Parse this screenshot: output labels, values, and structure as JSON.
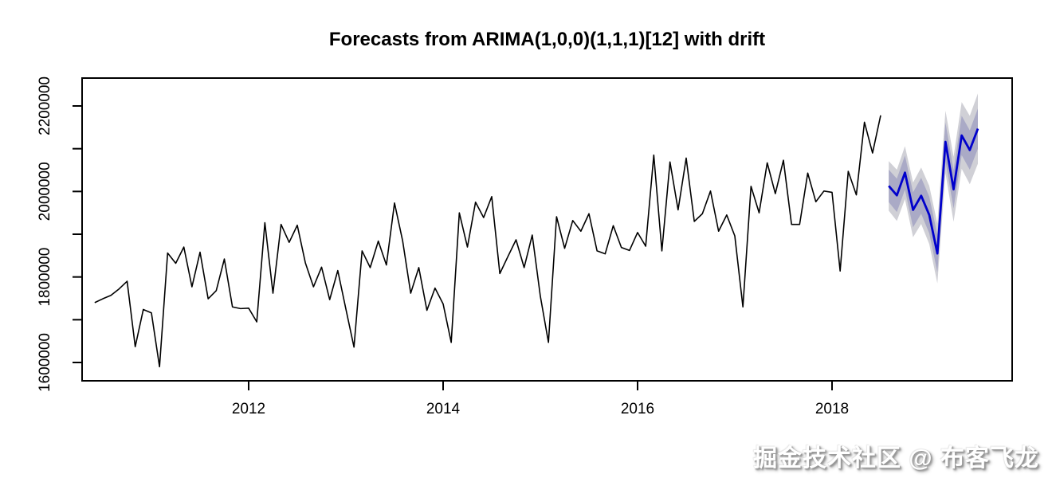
{
  "title": "Forecasts from ARIMA(1,0,0)(1,1,1)[12] with drift",
  "watermark": "掘金技术社区 @ 布客飞龙",
  "chart_data": {
    "type": "line",
    "title": "Forecasts from ARIMA(1,0,0)(1,1,1)[12] with drift",
    "xlabel": "",
    "ylabel": "",
    "grid": false,
    "legend": "none",
    "x_ticks": [
      2012,
      2014,
      2016,
      2018
    ],
    "y_tick_labels": [
      1600000,
      1800000,
      2000000,
      2200000
    ],
    "y_minor_step": 100000,
    "xlim": [
      2010.29,
      2019.85
    ],
    "ylim": [
      1557000,
      2265000
    ],
    "series": [
      {
        "name": "observed",
        "type": "line",
        "color": "#000000",
        "start_year": 2010,
        "start_month": 6,
        "frequency": 12,
        "values": [
          1740000,
          1749000,
          1757000,
          1772000,
          1790000,
          1637000,
          1724000,
          1716000,
          1590000,
          1856000,
          1832000,
          1870000,
          1777000,
          1858000,
          1749000,
          1768000,
          1842000,
          1730000,
          1726000,
          1727000,
          1695000,
          1927000,
          1762000,
          1923000,
          1881000,
          1921000,
          1833000,
          1777000,
          1823000,
          1747000,
          1815000,
          1725000,
          1636000,
          1861000,
          1822000,
          1884000,
          1828000,
          1973000,
          1885000,
          1762000,
          1822000,
          1722000,
          1774000,
          1737000,
          1647000,
          1950000,
          1870000,
          1975000,
          1939000,
          1988000,
          1808000,
          1848000,
          1887000,
          1822000,
          1898000,
          1755000,
          1647000,
          1941000,
          1867000,
          1932000,
          1907000,
          1948000,
          1861000,
          1854000,
          1920000,
          1869000,
          1862000,
          1904000,
          1872000,
          2085000,
          1861000,
          2069000,
          1957000,
          2078000,
          1930000,
          1948000,
          2001000,
          1907000,
          1945000,
          1896000,
          1730000,
          2012000,
          1950000,
          2067000,
          1995000,
          2073000,
          1923000,
          1923000,
          2043000,
          1976000,
          2001000,
          1998000,
          1814000,
          2047000,
          1992000,
          2162000,
          2090000,
          2178000
        ]
      },
      {
        "name": "forecast-mean",
        "type": "line",
        "color": "#0000CC",
        "start_year": 2018,
        "start_month": 8,
        "frequency": 12,
        "values": [
          2013000,
          1991000,
          2044000,
          1957000,
          1990000,
          1945000,
          1855000,
          2116000,
          2005000,
          2131000,
          2097000,
          2147000
        ]
      }
    ],
    "prediction_intervals": {
      "band95": {
        "level": 95,
        "color": "#D0D0D6",
        "lo": [
          1955000,
          1931000,
          1982000,
          1893000,
          1924000,
          1877000,
          1785000,
          2043000,
          1929000,
          2053000,
          2017000,
          2065000
        ],
        "hi": [
          2071000,
          2051000,
          2106000,
          2021000,
          2056000,
          2013000,
          1925000,
          2189000,
          2081000,
          2209000,
          2177000,
          2229000
        ]
      },
      "band80": {
        "level": 80,
        "color": "#AAAAC6",
        "lo": [
          1975000,
          1952000,
          2004000,
          1916000,
          1948000,
          1902000,
          1811000,
          2071000,
          1960000,
          2085000,
          2051000,
          2100000
        ],
        "hi": [
          2051000,
          2030000,
          2084000,
          1998000,
          2032000,
          1988000,
          1899000,
          2161000,
          2050000,
          2177000,
          2143000,
          2194000
        ]
      }
    }
  }
}
